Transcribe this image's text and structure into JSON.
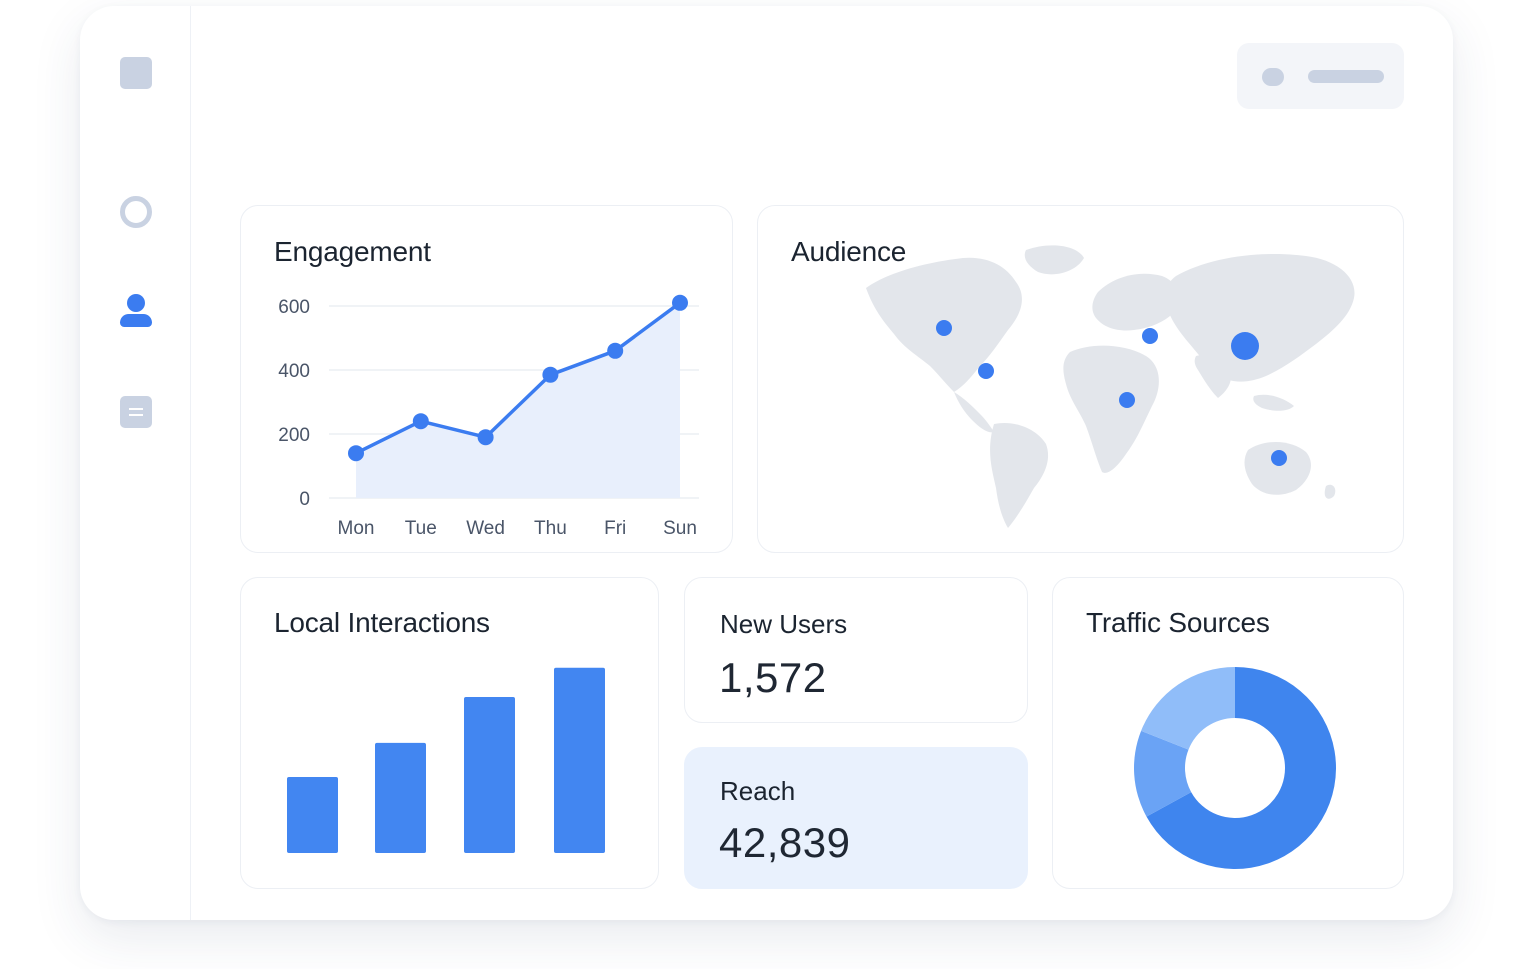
{
  "sidebar": {
    "items": [
      {
        "icon": "logo-icon"
      },
      {
        "icon": "circle-icon"
      },
      {
        "icon": "user-icon",
        "active": true
      },
      {
        "icon": "document-icon"
      }
    ]
  },
  "colors": {
    "accent": "#3b7cf0",
    "accent_light": "#e8effc",
    "muted": "#c9d2e2"
  },
  "engagement": {
    "title": "Engagement",
    "chart_data": {
      "type": "area",
      "categories": [
        "Mon",
        "Tue",
        "Wed",
        "Thu",
        "Fri",
        "Sun"
      ],
      "values": [
        140,
        240,
        190,
        385,
        460,
        610
      ],
      "ylim": [
        0,
        600
      ],
      "yticks": [
        "0",
        "200",
        "400",
        "600"
      ],
      "grid": true
    }
  },
  "audience": {
    "title": "Audience",
    "map": "world-map",
    "markers": [
      {
        "region": "North America (West)"
      },
      {
        "region": "North America (East)"
      },
      {
        "region": "Europe"
      },
      {
        "region": "East Asia",
        "size": "large"
      },
      {
        "region": "Africa"
      },
      {
        "region": "Australia"
      }
    ]
  },
  "local_interactions": {
    "title": "Local Interactions",
    "chart_data": {
      "type": "bar",
      "values": [
        78,
        113,
        160,
        190
      ],
      "ylim": [
        0,
        200
      ]
    }
  },
  "new_users": {
    "label": "New Users",
    "value": "1,572"
  },
  "reach": {
    "label": "Reach",
    "value": "42,839"
  },
  "traffic_sources": {
    "title": "Traffic Sources",
    "chart_data": {
      "type": "pie",
      "values": [
        67,
        14,
        19
      ],
      "colors": [
        "#3f85ee",
        "#6aa3f5",
        "#90bdf9"
      ]
    }
  }
}
